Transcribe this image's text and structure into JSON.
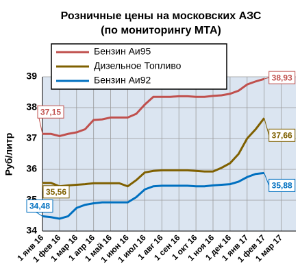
{
  "chart_data": {
    "type": "line",
    "title": "Розничные цены на московских АЗС",
    "subtitle": "(по мониторингу МТА)",
    "y_label": "Руб/литр",
    "categories": [
      "1 янв 16",
      null,
      "1 фев 16",
      null,
      "1 мар 16",
      null,
      "1 апр 16",
      null,
      "1 май 16",
      null,
      "1 июн 16",
      null,
      "1 июл 16",
      null,
      "1 авг 16",
      null,
      "1 сен 16",
      null,
      "1 окт 16",
      null,
      "1 ноя 16",
      null,
      "1 дек 16",
      null,
      "1 янв 17",
      null,
      "1 фев 17",
      null,
      "1 мар 17"
    ],
    "series": [
      {
        "name": "Бензин Аи95",
        "color": "#c0504d",
        "values": [
          37.15,
          37.15,
          37.08,
          37.15,
          37.2,
          37.3,
          37.6,
          37.62,
          37.68,
          37.68,
          37.68,
          37.8,
          38.1,
          38.35,
          38.35,
          38.35,
          38.37,
          38.37,
          38.35,
          38.35,
          38.38,
          38.4,
          38.45,
          38.55,
          38.75,
          38.85,
          38.93,
          null,
          null
        ],
        "value_labels": [
          "37,15",
          null,
          null,
          null,
          null,
          null,
          null,
          null,
          null,
          null,
          null,
          null,
          null,
          null,
          null,
          null,
          null,
          null,
          null,
          null,
          null,
          null,
          null,
          null,
          null,
          null,
          "38,93",
          null,
          null
        ]
      },
      {
        "name": "Дизельное Топливо",
        "color": "#7f6000",
        "values": [
          35.56,
          35.56,
          35.45,
          35.48,
          35.5,
          35.52,
          35.55,
          35.55,
          35.55,
          35.55,
          35.45,
          35.65,
          35.9,
          35.95,
          35.97,
          35.97,
          35.97,
          35.97,
          35.95,
          35.93,
          35.93,
          36.05,
          36.2,
          36.5,
          37.0,
          37.3,
          37.66,
          null,
          null
        ],
        "value_labels": [
          "35,56",
          null,
          null,
          null,
          null,
          null,
          null,
          null,
          null,
          null,
          null,
          null,
          null,
          null,
          null,
          null,
          null,
          null,
          null,
          null,
          null,
          null,
          null,
          null,
          null,
          null,
          "37,66",
          null,
          null
        ]
      },
      {
        "name": "Бензин Аи92",
        "color": "#0070c0",
        "values": [
          34.48,
          34.45,
          34.4,
          34.48,
          34.75,
          34.85,
          34.9,
          34.93,
          34.93,
          34.93,
          34.93,
          35.1,
          35.35,
          35.45,
          35.47,
          35.47,
          35.47,
          35.47,
          35.45,
          35.45,
          35.48,
          35.5,
          35.52,
          35.6,
          35.75,
          35.85,
          35.88,
          null,
          null
        ],
        "value_labels": [
          "34,48",
          null,
          null,
          null,
          null,
          null,
          null,
          null,
          null,
          null,
          null,
          null,
          null,
          null,
          null,
          null,
          null,
          null,
          null,
          null,
          null,
          null,
          null,
          null,
          null,
          null,
          "35,88",
          null,
          null
        ]
      }
    ],
    "ylim": [
      34,
      39
    ],
    "yticks": [
      34,
      35,
      36,
      37,
      38,
      39
    ],
    "grid": true
  }
}
